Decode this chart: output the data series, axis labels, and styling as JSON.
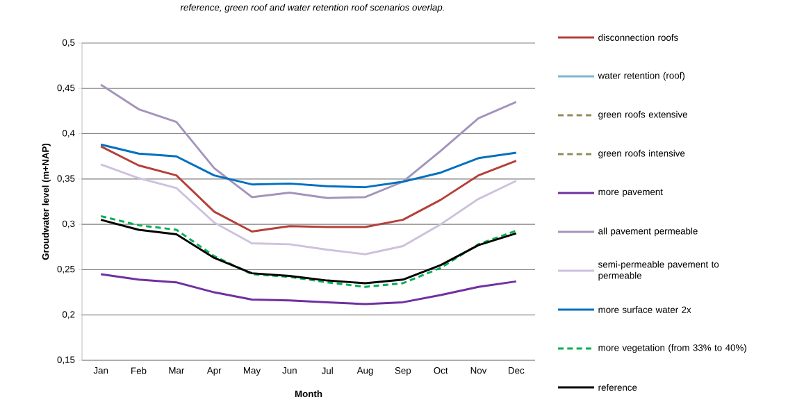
{
  "chart_data": {
    "type": "line",
    "annotations": [
      "reference, green roof and water retention roof scenarios overlap."
    ],
    "categories": [
      "Jan",
      "Feb",
      "Mar",
      "Apr",
      "May",
      "Jun",
      "Jul",
      "Aug",
      "Sep",
      "Oct",
      "Nov",
      "Dec"
    ],
    "xlabel": "Month",
    "ylabel": "Groudwater level (m+NAP)",
    "ylim": [
      0.15,
      0.5
    ],
    "yticks": [
      {
        "value": 0.15,
        "label": "0,15"
      },
      {
        "value": 0.2,
        "label": "0,2"
      },
      {
        "value": 0.25,
        "label": "0,25"
      },
      {
        "value": 0.3,
        "label": "0,3"
      },
      {
        "value": 0.35,
        "label": "0,35"
      },
      {
        "value": 0.4,
        "label": "0,4"
      },
      {
        "value": 0.45,
        "label": "0,45"
      },
      {
        "value": 0.5,
        "label": "0,5"
      }
    ],
    "grid": "y",
    "legend": "right",
    "series": [
      {
        "name": "disconnection roofs",
        "color": "#b5403a",
        "line_style": "solid",
        "values": [
          0.386,
          0.365,
          0.354,
          0.314,
          0.292,
          0.298,
          0.297,
          0.297,
          0.305,
          0.327,
          0.354,
          0.37
        ]
      },
      {
        "name": "water retention (roof)",
        "color": "#7fb8cc",
        "line_style": "solid",
        "values": [
          null,
          null,
          null,
          null,
          null,
          null,
          null,
          null,
          null,
          null,
          null,
          null
        ]
      },
      {
        "name": "green roofs extensive",
        "color": "#8f8b5a",
        "line_style": "dashed",
        "values": [
          null,
          null,
          null,
          null,
          null,
          null,
          null,
          null,
          null,
          null,
          null,
          null
        ]
      },
      {
        "name": "green roofs intensive",
        "color": "#8f8b5a",
        "line_style": "dashed",
        "values": [
          null,
          null,
          null,
          null,
          null,
          null,
          null,
          null,
          null,
          null,
          null,
          null
        ]
      },
      {
        "name": "more pavement",
        "color": "#7030a0",
        "line_style": "solid",
        "values": [
          0.245,
          0.239,
          0.236,
          0.225,
          0.217,
          0.216,
          0.214,
          0.212,
          0.214,
          0.222,
          0.231,
          0.237
        ]
      },
      {
        "name": "all pavement permeable",
        "color": "#a394bc",
        "line_style": "solid",
        "values": [
          0.454,
          0.427,
          0.413,
          0.362,
          0.33,
          0.335,
          0.329,
          0.33,
          0.347,
          0.381,
          0.417,
          0.435
        ]
      },
      {
        "name": "semi-permeable pavement to permeable",
        "color": "#cdc2dd",
        "line_style": "solid",
        "values": [
          0.366,
          0.351,
          0.34,
          0.302,
          0.279,
          0.278,
          0.272,
          0.267,
          0.276,
          0.3,
          0.328,
          0.348
        ]
      },
      {
        "name": "more surface water 2x",
        "color": "#0070c0",
        "line_style": "solid",
        "values": [
          0.388,
          0.378,
          0.375,
          0.354,
          0.344,
          0.345,
          0.342,
          0.341,
          0.347,
          0.357,
          0.373,
          0.379
        ]
      },
      {
        "name": "more vegetation (from 33% to 40%)",
        "color": "#00b050",
        "line_style": "dashed",
        "values": [
          0.309,
          0.299,
          0.294,
          0.265,
          0.245,
          0.242,
          0.236,
          0.231,
          0.235,
          0.252,
          0.278,
          0.293
        ]
      },
      {
        "name": "reference",
        "color": "#000000",
        "line_style": "solid",
        "values": [
          0.305,
          0.294,
          0.289,
          0.263,
          0.246,
          0.243,
          0.238,
          0.235,
          0.239,
          0.255,
          0.277,
          0.29
        ]
      }
    ]
  }
}
